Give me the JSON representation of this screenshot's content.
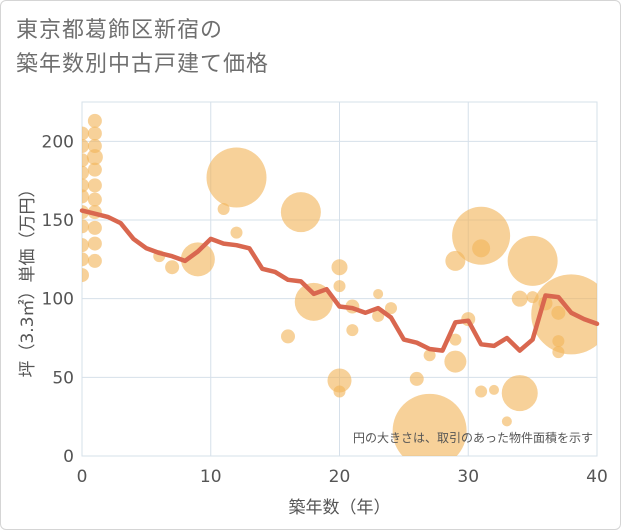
{
  "title_line1": "東京都葛飾区新宿の",
  "title_line2": "築年数別中古戸建て価格",
  "chart_data": {
    "type": "scatter",
    "xlabel": "築年数（年）",
    "ylabel": "坪（3.3㎡）単価（万円）",
    "xlim": [
      0,
      40
    ],
    "ylim": [
      0,
      225
    ],
    "xticks": [
      "0",
      "10",
      "20",
      "30",
      "40"
    ],
    "yticks": [
      "0",
      "50",
      "100",
      "150",
      "200"
    ],
    "grid": true,
    "note": "円の大きさは、取引のあった物件面積を示す",
    "colors": {
      "bubble": "#f2b55a",
      "line": "#d9674f",
      "grid": "#d6e0ea"
    },
    "bubbles": [
      {
        "x": 0,
        "y": 205,
        "r": 7
      },
      {
        "x": 0,
        "y": 197,
        "r": 7
      },
      {
        "x": 0,
        "y": 188,
        "r": 7
      },
      {
        "x": 0,
        "y": 180,
        "r": 7
      },
      {
        "x": 0,
        "y": 172,
        "r": 7
      },
      {
        "x": 0,
        "y": 165,
        "r": 7
      },
      {
        "x": 0,
        "y": 155,
        "r": 7
      },
      {
        "x": 0,
        "y": 146,
        "r": 7
      },
      {
        "x": 0,
        "y": 134,
        "r": 7
      },
      {
        "x": 0,
        "y": 125,
        "r": 7
      },
      {
        "x": 0,
        "y": 115,
        "r": 7
      },
      {
        "x": 1,
        "y": 213,
        "r": 7
      },
      {
        "x": 1,
        "y": 205,
        "r": 7
      },
      {
        "x": 1,
        "y": 197,
        "r": 7
      },
      {
        "x": 1,
        "y": 190,
        "r": 8
      },
      {
        "x": 1,
        "y": 182,
        "r": 7
      },
      {
        "x": 1,
        "y": 172,
        "r": 7
      },
      {
        "x": 1,
        "y": 163,
        "r": 7
      },
      {
        "x": 1,
        "y": 155,
        "r": 7
      },
      {
        "x": 1,
        "y": 145,
        "r": 7
      },
      {
        "x": 1,
        "y": 135,
        "r": 7
      },
      {
        "x": 1,
        "y": 124,
        "r": 7
      },
      {
        "x": 6,
        "y": 127,
        "r": 6
      },
      {
        "x": 7,
        "y": 120,
        "r": 7
      },
      {
        "x": 9,
        "y": 125,
        "r": 17
      },
      {
        "x": 11,
        "y": 157,
        "r": 6
      },
      {
        "x": 12,
        "y": 177,
        "r": 30
      },
      {
        "x": 12,
        "y": 142,
        "r": 6
      },
      {
        "x": 16,
        "y": 76,
        "r": 7
      },
      {
        "x": 17,
        "y": 155,
        "r": 20
      },
      {
        "x": 18,
        "y": 98,
        "r": 19
      },
      {
        "x": 20,
        "y": 120,
        "r": 8
      },
      {
        "x": 20,
        "y": 108,
        "r": 6
      },
      {
        "x": 20,
        "y": 48,
        "r": 12
      },
      {
        "x": 20,
        "y": 41,
        "r": 6
      },
      {
        "x": 21,
        "y": 95,
        "r": 7
      },
      {
        "x": 21,
        "y": 80,
        "r": 6
      },
      {
        "x": 23,
        "y": 103,
        "r": 5
      },
      {
        "x": 23,
        "y": 89,
        "r": 6
      },
      {
        "x": 24,
        "y": 94,
        "r": 6
      },
      {
        "x": 26,
        "y": 49,
        "r": 7
      },
      {
        "x": 27,
        "y": 16,
        "r": 37
      },
      {
        "x": 27,
        "y": 64,
        "r": 6
      },
      {
        "x": 29,
        "y": 124,
        "r": 10
      },
      {
        "x": 29,
        "y": 74,
        "r": 6
      },
      {
        "x": 29,
        "y": 60,
        "r": 11
      },
      {
        "x": 30,
        "y": 87,
        "r": 7
      },
      {
        "x": 31,
        "y": 140,
        "r": 29
      },
      {
        "x": 31,
        "y": 132,
        "r": 9
      },
      {
        "x": 31,
        "y": 41,
        "r": 6
      },
      {
        "x": 32,
        "y": 42,
        "r": 5
      },
      {
        "x": 33,
        "y": 22,
        "r": 5
      },
      {
        "x": 34,
        "y": 100,
        "r": 8
      },
      {
        "x": 34,
        "y": 40,
        "r": 18
      },
      {
        "x": 35,
        "y": 124,
        "r": 25
      },
      {
        "x": 35,
        "y": 101,
        "r": 6
      },
      {
        "x": 36,
        "y": 97,
        "r": 7
      },
      {
        "x": 37,
        "y": 91,
        "r": 7
      },
      {
        "x": 37,
        "y": 73,
        "r": 6
      },
      {
        "x": 37,
        "y": 66,
        "r": 6
      },
      {
        "x": 38,
        "y": 90,
        "r": 40
      }
    ],
    "series": [
      {
        "x": [
          0,
          1,
          2,
          3,
          4,
          5,
          6,
          7,
          8,
          9,
          10,
          11,
          12,
          13,
          14,
          15,
          16,
          17,
          18,
          19,
          20,
          21,
          22,
          23,
          24,
          25,
          26,
          27,
          28,
          29,
          30,
          31,
          32,
          33,
          34,
          35,
          36,
          37,
          38,
          39,
          40
        ],
        "values": [
          156,
          154,
          152,
          148,
          138,
          132,
          129,
          127,
          124,
          130,
          138,
          135,
          134,
          132,
          119,
          117,
          112,
          111,
          103,
          106,
          95,
          94,
          91,
          94,
          88,
          74,
          72,
          68,
          67,
          85,
          86,
          71,
          70,
          75,
          67,
          74,
          102,
          101,
          91,
          87,
          84
        ]
      }
    ]
  }
}
